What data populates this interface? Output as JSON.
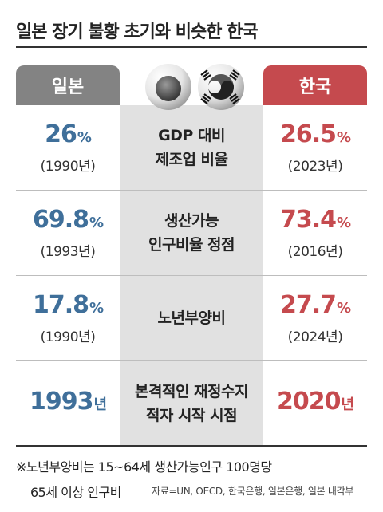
{
  "title": "일본 장기 불황 초기와 비슷한 한국",
  "headers": {
    "japan": "일본",
    "korea": "한국"
  },
  "rows": [
    {
      "label1": "GDP 대비",
      "label2": "제조업 비율",
      "jp_value": "26",
      "jp_unit": "%",
      "jp_year": "(1990년)",
      "kr_value": "26.5",
      "kr_unit": "%",
      "kr_year": "(2023년)"
    },
    {
      "label1": "생산가능",
      "label2": "인구비율 정점",
      "jp_value": "69.8",
      "jp_unit": "%",
      "jp_year": "(1993년)",
      "kr_value": "73.4",
      "kr_unit": "%",
      "kr_year": "(2016년)"
    },
    {
      "label1": "노년부양비",
      "label2": "",
      "jp_value": "17.8",
      "jp_unit": "%",
      "jp_year": "(1990년)",
      "kr_value": "27.7",
      "kr_unit": "%",
      "kr_year": "(2024년)"
    },
    {
      "label1": "본격적인 재정수지",
      "label2": "적자 시작 시점",
      "jp_value": "1993",
      "jp_unit": "년",
      "jp_year": "",
      "kr_value": "2020",
      "kr_unit": "년",
      "kr_year": ""
    }
  ],
  "footnote_line1": "※노년부양비는 15~64세 생산가능인구 100명당",
  "footnote_line2": "65세 이상 인구비",
  "source": "자료=UN, OECD, 한국은행, 일본은행, 일본 내각부",
  "colors": {
    "japan": "#3f6f9a",
    "korea": "#c54a4e",
    "japan_header": "#838383"
  }
}
